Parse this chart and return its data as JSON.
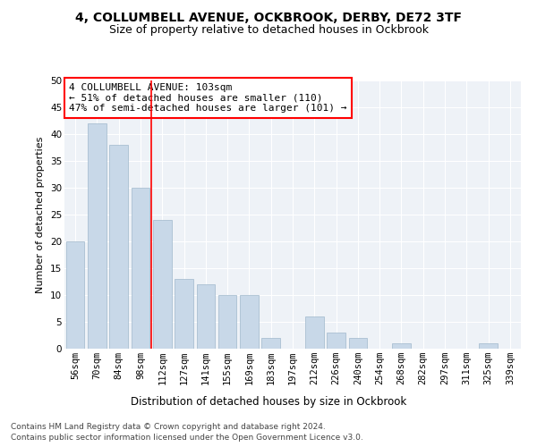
{
  "title1": "4, COLLUMBELL AVENUE, OCKBROOK, DERBY, DE72 3TF",
  "title2": "Size of property relative to detached houses in Ockbrook",
  "xlabel": "Distribution of detached houses by size in Ockbrook",
  "ylabel": "Number of detached properties",
  "categories": [
    "56sqm",
    "70sqm",
    "84sqm",
    "98sqm",
    "112sqm",
    "127sqm",
    "141sqm",
    "155sqm",
    "169sqm",
    "183sqm",
    "197sqm",
    "212sqm",
    "226sqm",
    "240sqm",
    "254sqm",
    "268sqm",
    "282sqm",
    "297sqm",
    "311sqm",
    "325sqm",
    "339sqm"
  ],
  "values": [
    20,
    42,
    38,
    30,
    24,
    13,
    12,
    10,
    10,
    2,
    0,
    6,
    3,
    2,
    0,
    1,
    0,
    0,
    0,
    1,
    0
  ],
  "bar_color": "#c8d8e8",
  "bar_edge_color": "#a0b8cc",
  "vline_x": 3.5,
  "vline_color": "red",
  "annotation_text": "4 COLLUMBELL AVENUE: 103sqm\n← 51% of detached houses are smaller (110)\n47% of semi-detached houses are larger (101) →",
  "annotation_box_color": "white",
  "annotation_box_edge": "red",
  "ylim": [
    0,
    50
  ],
  "yticks": [
    0,
    5,
    10,
    15,
    20,
    25,
    30,
    35,
    40,
    45,
    50
  ],
  "bg_color": "#eef2f7",
  "footer1": "Contains HM Land Registry data © Crown copyright and database right 2024.",
  "footer2": "Contains public sector information licensed under the Open Government Licence v3.0.",
  "title1_fontsize": 10,
  "title2_fontsize": 9,
  "xlabel_fontsize": 8.5,
  "ylabel_fontsize": 8,
  "tick_fontsize": 7.5,
  "annotation_fontsize": 8,
  "footer_fontsize": 6.5
}
